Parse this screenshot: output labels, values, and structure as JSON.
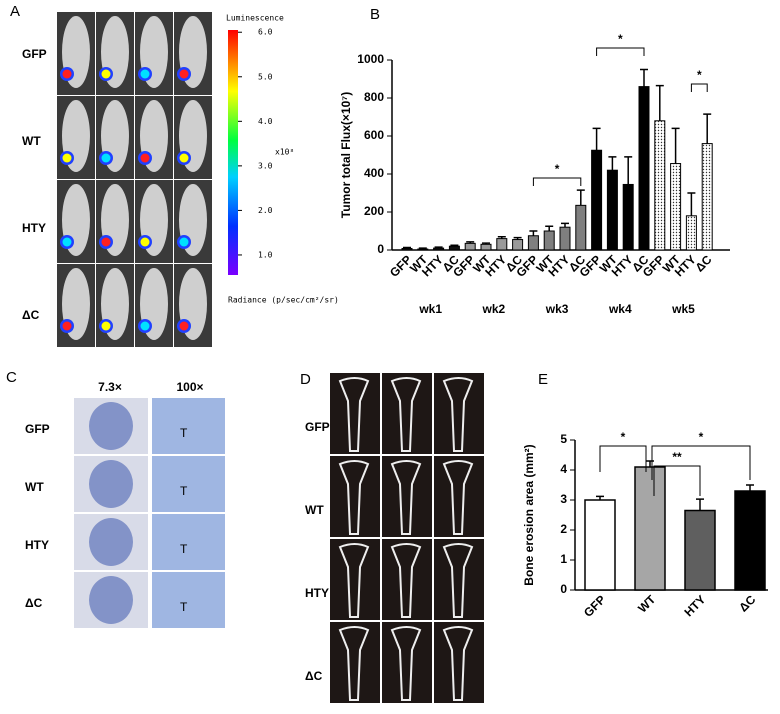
{
  "panel_a": {
    "label": "A",
    "rows": [
      "GFP",
      "WT",
      "HTY",
      "ΔC"
    ],
    "colorbar_title": "Luminescence",
    "colorbar_unit": "x10⁸",
    "colorbar_caption": "Radiance (p/sec/cm²/sr)",
    "clim": [
      0.55,
      6.05
    ],
    "cticks": [
      {
        "value": 6,
        "label": "6.0"
      },
      {
        "value": 5,
        "label": "5.0"
      },
      {
        "value": 4,
        "label": "4.0"
      },
      {
        "value": 3,
        "label": "3.0"
      },
      {
        "value": 2,
        "label": "2.0"
      },
      {
        "value": 1,
        "label": "1.0"
      }
    ]
  },
  "panel_b_label": "B",
  "panel_c": {
    "label": "C",
    "columns": [
      "7.3×",
      "100×"
    ],
    "rows": [
      "GFP",
      "WT",
      "HTY",
      "ΔC"
    ],
    "annotations": [
      "T",
      "T",
      "T",
      "T"
    ]
  },
  "panel_d": {
    "label": "D",
    "rows": [
      "GFP",
      "WT",
      "HTY",
      "ΔC"
    ]
  },
  "panel_e_label": "E",
  "chart_data": [
    {
      "type": "grouped-bar",
      "ylabel": "Tumor total Flux(×10⁷)",
      "categories": [
        "GFP",
        "WT",
        "HTY",
        "ΔC"
      ],
      "groups": [
        {
          "name": "wk1",
          "color": "#111111",
          "values": [
            8,
            5,
            10,
            20
          ],
          "errors": [
            5,
            5,
            5,
            5
          ]
        },
        {
          "name": "wk2",
          "color": "#9a9a9a",
          "values": [
            35,
            30,
            60,
            55
          ],
          "errors": [
            8,
            6,
            10,
            10
          ]
        },
        {
          "name": "wk3",
          "color": "#7f7f7f",
          "values": [
            75,
            100,
            120,
            235
          ],
          "errors": [
            25,
            25,
            20,
            80
          ]
        },
        {
          "name": "wk4",
          "color": "#000000",
          "values": [
            525,
            420,
            345,
            860
          ],
          "errors": [
            115,
            70,
            145,
            90
          ]
        },
        {
          "name": "wk5",
          "color": "#ffffff",
          "pattern": "dots",
          "values": [
            680,
            455,
            180,
            560
          ],
          "errors": [
            185,
            185,
            120,
            155
          ]
        }
      ],
      "significance": [
        "*",
        "*",
        "*"
      ],
      "ylim": [
        0,
        1000
      ],
      "yticks": [
        0,
        200,
        400,
        600,
        800,
        1000
      ]
    },
    {
      "type": "bar",
      "ylabel": "Bone erosion area (mm²)",
      "categories": [
        "GFP",
        "WT",
        "HTY",
        "ΔC"
      ],
      "values": [
        3.0,
        4.1,
        2.65,
        3.3
      ],
      "errors": [
        0.12,
        0.2,
        0.38,
        0.2
      ],
      "colors": [
        "#ffffff",
        "#a6a6a6",
        "#5f5f5f",
        "#000000"
      ],
      "significance": [
        "*",
        "**",
        "*"
      ],
      "ylim": [
        0,
        5
      ],
      "yticks": [
        0,
        1,
        2,
        3,
        4,
        5
      ]
    }
  ]
}
